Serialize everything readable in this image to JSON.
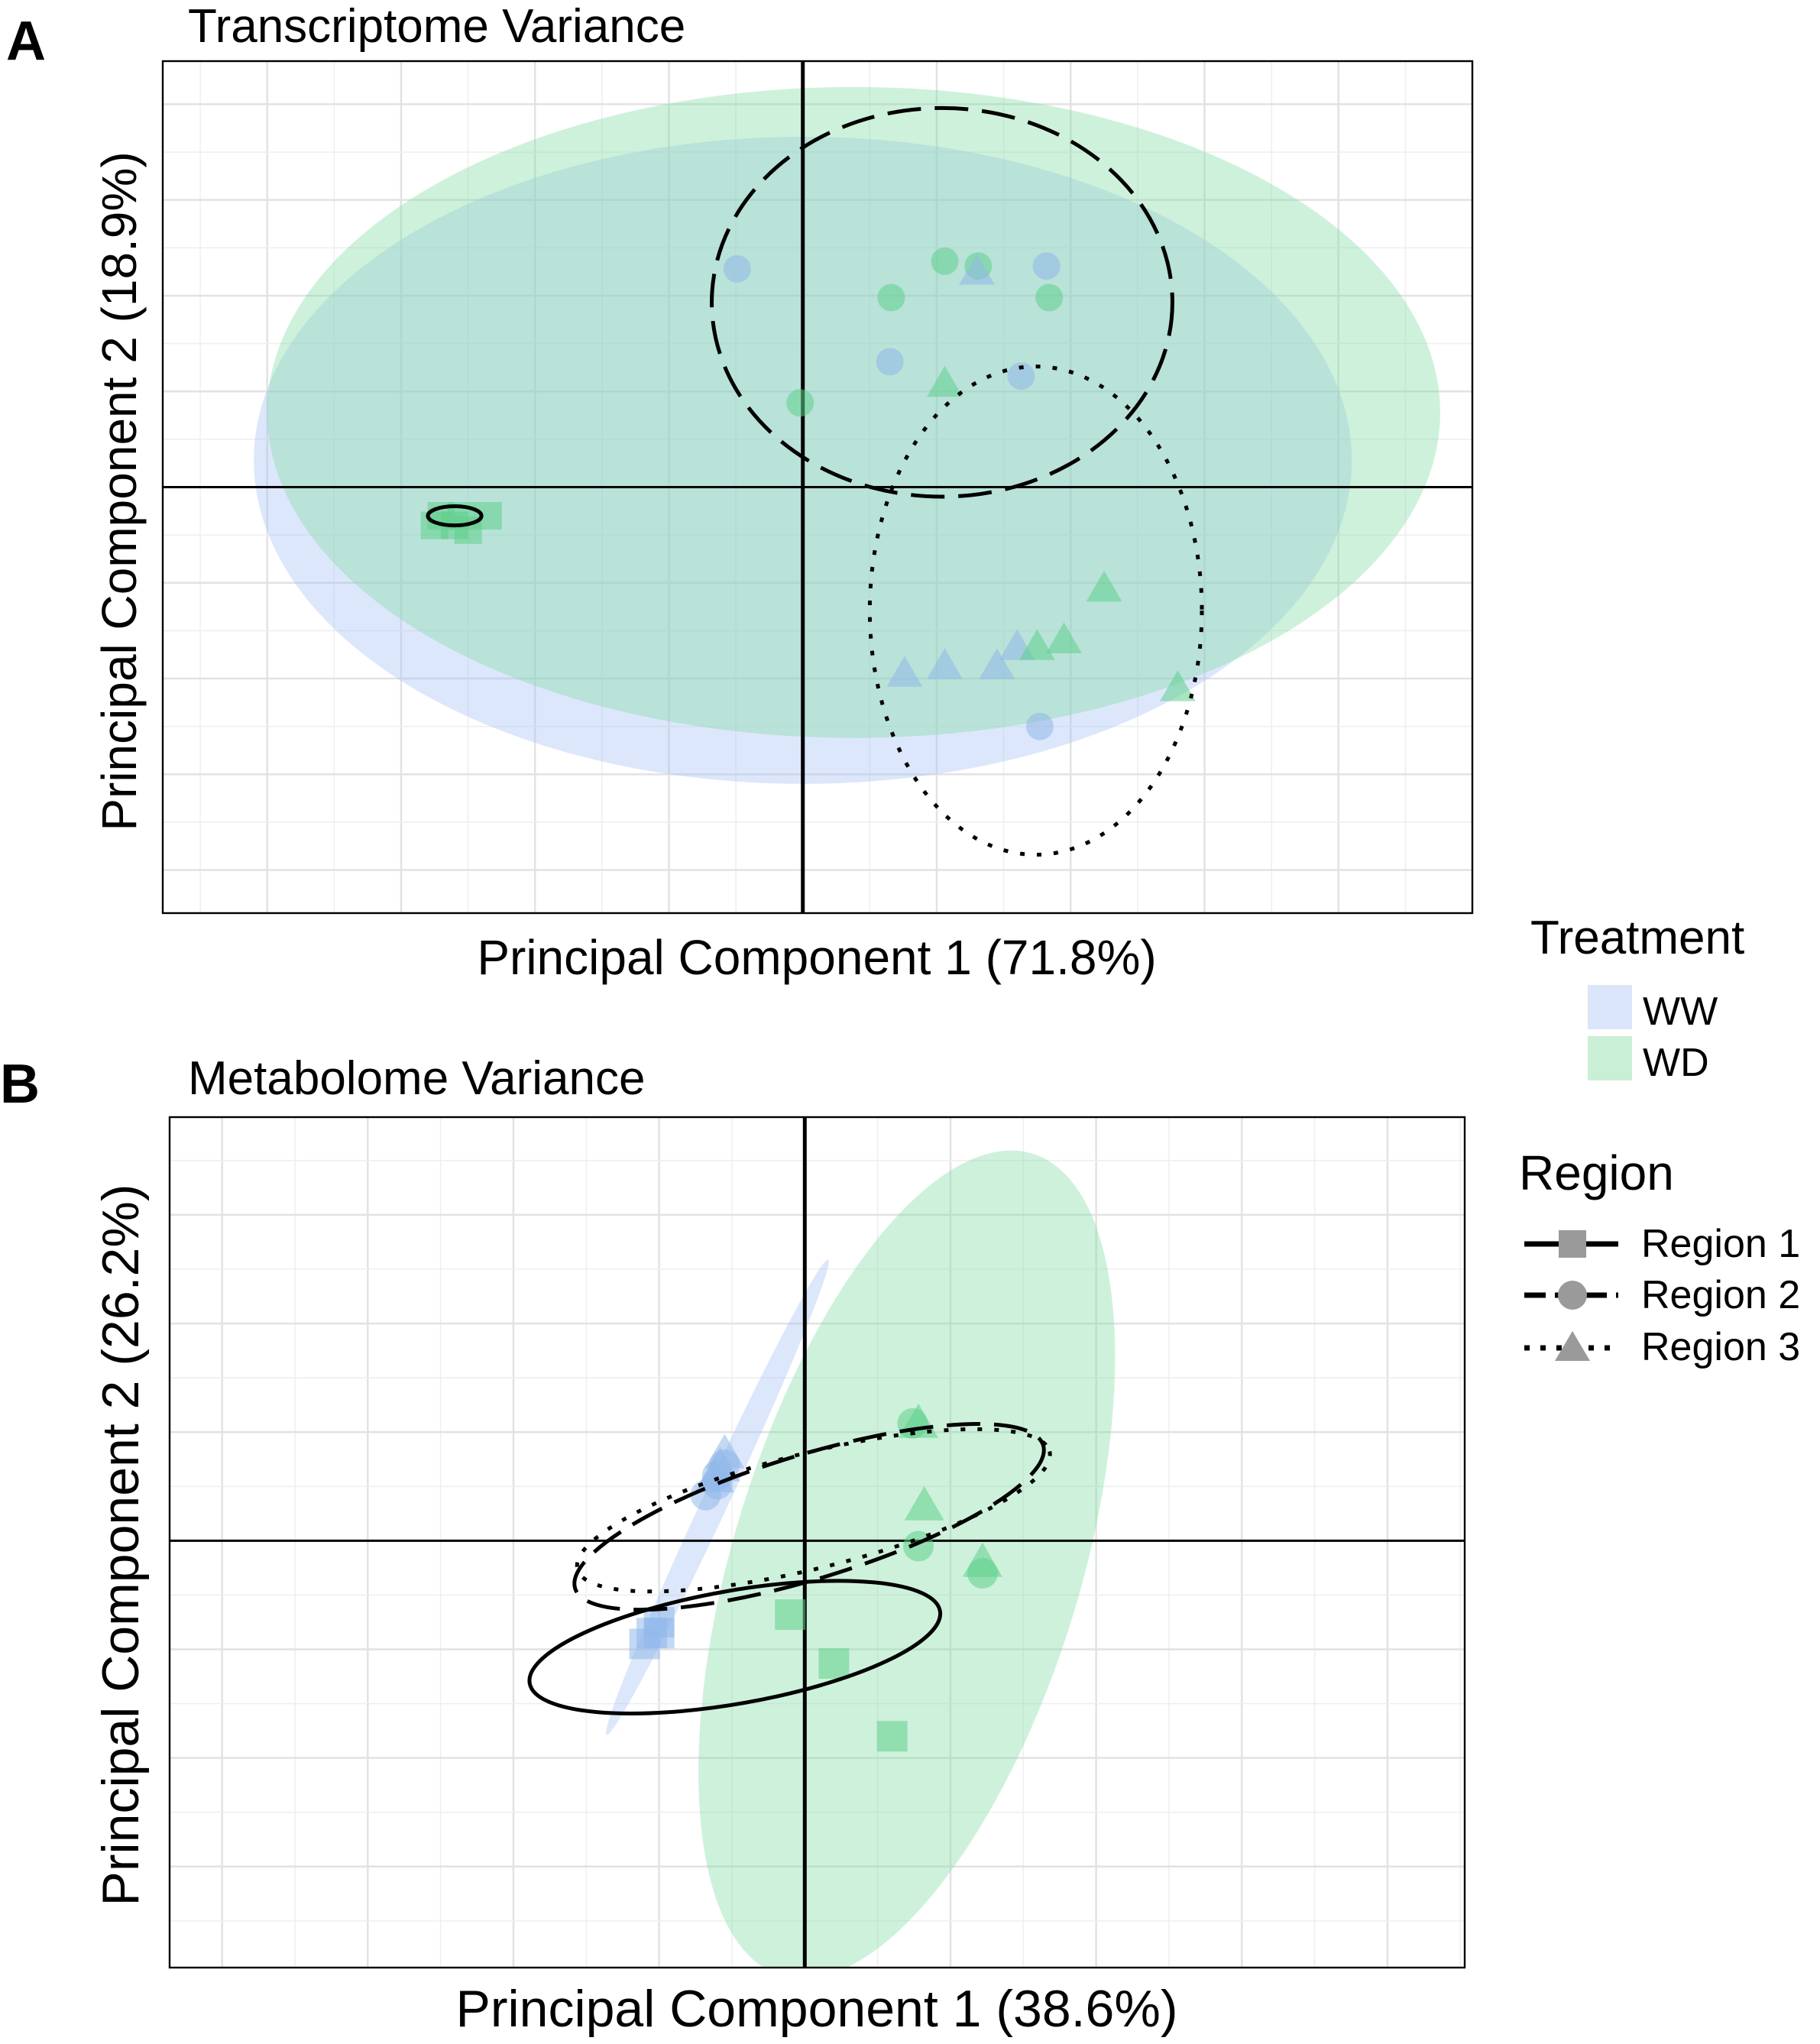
{
  "colors": {
    "WW": "#a9c4f5",
    "WD": "#7fd9a2",
    "ww_pt": "#8fb8ea",
    "wd_pt": "#5fcf8a",
    "grid": "#e5e5e5",
    "legend_grey": "#9a9a9a"
  },
  "legend": {
    "treatment_title": "Treatment",
    "treatment_items": [
      "WW",
      "WD"
    ],
    "region_title": "Region",
    "region_items": [
      "Region 1",
      "Region 2",
      "Region 3"
    ]
  },
  "chart_data": [
    {
      "panel": "A",
      "type": "scatter",
      "title": "Transcriptome Variance",
      "xlabel": "Principal Component 1 (71.8%)",
      "ylabel": "Principal Component 2 (18.9%)",
      "xlim": [
        -4.78,
        5.0
      ],
      "ylim": [
        -4.45,
        4.45
      ],
      "grid": true,
      "points": [
        {
          "x": -2.7,
          "y": -0.3,
          "t": "WD",
          "r": 1
        },
        {
          "x": -2.55,
          "y": -0.3,
          "t": "WD",
          "r": 1
        },
        {
          "x": -2.35,
          "y": -0.3,
          "t": "WD",
          "r": 1
        },
        {
          "x": -2.6,
          "y": -0.4,
          "t": "WD",
          "r": 1
        },
        {
          "x": -2.75,
          "y": -0.4,
          "t": "WD",
          "r": 1
        },
        {
          "x": -2.5,
          "y": -0.45,
          "t": "WD",
          "r": 1
        },
        {
          "x": -0.49,
          "y": 2.28,
          "t": "WW",
          "r": 2
        },
        {
          "x": 0.66,
          "y": 1.98,
          "t": "WD",
          "r": 2
        },
        {
          "x": 1.06,
          "y": 2.36,
          "t": "WD",
          "r": 2
        },
        {
          "x": 1.31,
          "y": 2.31,
          "t": "WD",
          "r": 2
        },
        {
          "x": 1.82,
          "y": 2.31,
          "t": "WW",
          "r": 2
        },
        {
          "x": 1.84,
          "y": 1.98,
          "t": "WD",
          "r": 2
        },
        {
          "x": 0.65,
          "y": 1.31,
          "t": "WW",
          "r": 2
        },
        {
          "x": -0.02,
          "y": 0.88,
          "t": "WD",
          "r": 2
        },
        {
          "x": 1.63,
          "y": 1.16,
          "t": "WW",
          "r": 2
        },
        {
          "x": 1.77,
          "y": -2.5,
          "t": "WW",
          "r": 2
        },
        {
          "x": 1.3,
          "y": 2.25,
          "t": "WW",
          "r": 3
        },
        {
          "x": 1.06,
          "y": 1.08,
          "t": "WD",
          "r": 3
        },
        {
          "x": 0.76,
          "y": -1.95,
          "t": "WW",
          "r": 3
        },
        {
          "x": 1.06,
          "y": -1.87,
          "t": "WW",
          "r": 3
        },
        {
          "x": 1.45,
          "y": -1.87,
          "t": "WW",
          "r": 3
        },
        {
          "x": 1.6,
          "y": -1.67,
          "t": "WW",
          "r": 3
        },
        {
          "x": 1.75,
          "y": -1.67,
          "t": "WD",
          "r": 3
        },
        {
          "x": 1.95,
          "y": -1.6,
          "t": "WD",
          "r": 3
        },
        {
          "x": 2.25,
          "y": -1.06,
          "t": "WD",
          "r": 3
        },
        {
          "x": 2.8,
          "y": -2.1,
          "t": "WD",
          "r": 3
        }
      ],
      "treatment_ellipses": [
        {
          "t": "WW",
          "cx": 0.0,
          "cy": 0.28,
          "rx": 4.1,
          "ry": 3.38,
          "angle": 0
        },
        {
          "t": "WD",
          "cx": 0.38,
          "cy": 0.78,
          "rx": 4.38,
          "ry": 3.4,
          "angle": 0
        }
      ],
      "region_ellipses": [
        {
          "r": 1,
          "cx": -2.6,
          "cy": -0.3,
          "rx": 0.2,
          "ry": 0.1,
          "angle": 0
        },
        {
          "r": 2,
          "cx": 1.04,
          "cy": 1.93,
          "rx": 1.72,
          "ry": 2.03,
          "angle": 0
        },
        {
          "r": 3,
          "cx": 1.74,
          "cy": -1.29,
          "rx": 1.24,
          "ry": 2.55,
          "angle": 0
        }
      ]
    },
    {
      "panel": "B",
      "type": "scatter",
      "title": "Metabolome Variance",
      "xlabel": "Principal Component 1 (38.6%)",
      "ylabel": "Principal Component 2 (26.2%)",
      "xlim": [
        -4.36,
        4.53
      ],
      "ylim": [
        -3.93,
        3.9
      ],
      "grid": true,
      "points": [
        {
          "x": -1.0,
          "y": -0.85,
          "t": "WW",
          "r": 1
        },
        {
          "x": -1.1,
          "y": -0.95,
          "t": "WW",
          "r": 1
        },
        {
          "x": -1.0,
          "y": -0.75,
          "t": "WW",
          "r": 1
        },
        {
          "x": -1.05,
          "y": -0.85,
          "t": "WW",
          "r": 1
        },
        {
          "x": -0.1,
          "y": -0.68,
          "t": "WD",
          "r": 1
        },
        {
          "x": 0.2,
          "y": -1.13,
          "t": "WD",
          "r": 1
        },
        {
          "x": 0.6,
          "y": -1.8,
          "t": "WD",
          "r": 1
        },
        {
          "x": -0.6,
          "y": 0.52,
          "t": "WW",
          "r": 2
        },
        {
          "x": -0.55,
          "y": 0.7,
          "t": "WW",
          "r": 2
        },
        {
          "x": -0.68,
          "y": 0.42,
          "t": "WW",
          "r": 2
        },
        {
          "x": -0.6,
          "y": 0.6,
          "t": "WW",
          "r": 2
        },
        {
          "x": 0.74,
          "y": 1.08,
          "t": "WD",
          "r": 2
        },
        {
          "x": 0.78,
          "y": -0.05,
          "t": "WD",
          "r": 2
        },
        {
          "x": 1.22,
          "y": -0.3,
          "t": "WD",
          "r": 2
        },
        {
          "x": -0.55,
          "y": 0.8,
          "t": "WW",
          "r": 3
        },
        {
          "x": -0.62,
          "y": 0.58,
          "t": "WW",
          "r": 3
        },
        {
          "x": -0.58,
          "y": 0.68,
          "t": "WW",
          "r": 3
        },
        {
          "x": 0.82,
          "y": 0.32,
          "t": "WD",
          "r": 3
        },
        {
          "x": 0.78,
          "y": 1.08,
          "t": "WD",
          "r": 3
        },
        {
          "x": 1.22,
          "y": -0.2,
          "t": "WD",
          "r": 3
        }
      ],
      "treatment_ellipses": [
        {
          "t": "WW",
          "cx": -0.6,
          "cy": 0.4,
          "rx": 1.8,
          "ry": 0.12,
          "angle": -65
        },
        {
          "t": "WD",
          "cx": 0.7,
          "cy": -0.22,
          "rx": 2.95,
          "ry": 1.6,
          "angle": -73
        }
      ],
      "region_ellipses": [
        {
          "r": 1,
          "cx": -0.48,
          "cy": -0.98,
          "rx": 1.43,
          "ry": 0.52,
          "angle": 10
        },
        {
          "r": 2,
          "cx": 0.03,
          "cy": 0.22,
          "rx": 1.68,
          "ry": 0.57,
          "angle": 17
        },
        {
          "r": 3,
          "cx": 0.06,
          "cy": 0.28,
          "rx": 1.67,
          "ry": 0.53,
          "angle": 14
        }
      ]
    }
  ]
}
